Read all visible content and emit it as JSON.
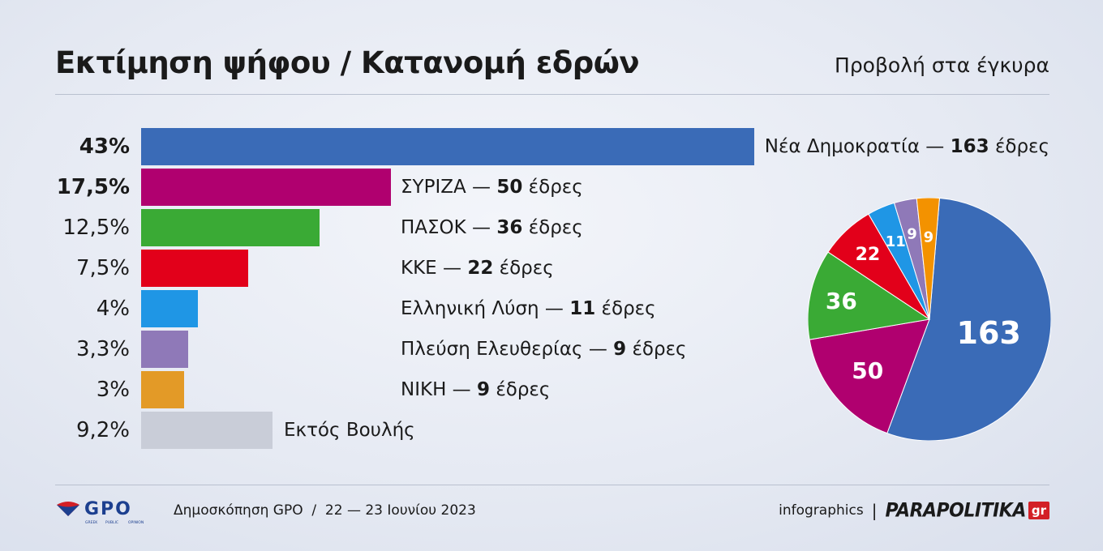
{
  "header": {
    "title": "Εκτίμηση ψήφου / Κατανομή εδρών",
    "subtitle": "Προβολή στα έγκυρα"
  },
  "chart_data": [
    {
      "type": "bar",
      "orientation": "horizontal",
      "title": "Εκτίμηση ψήφου",
      "categories": [
        "Νέα Δημοκρατία",
        "ΣΥΡΙΖΑ",
        "ΠΑΣΟΚ",
        "ΚΚΕ",
        "Ελληνική Λύση",
        "Πλεύση Ελευθερίας",
        "ΝΙΚΗ",
        "Εκτός Βουλής"
      ],
      "values": [
        43,
        17.5,
        12.5,
        7.5,
        4,
        3.3,
        3,
        9.2
      ],
      "value_labels": [
        "43%",
        "17,5%",
        "12,5%",
        "7,5%",
        "4%",
        "3,3%",
        "3%",
        "9,2%"
      ],
      "seat_labels": [
        "163",
        "50",
        "36",
        "22",
        "11",
        "9",
        "9",
        ""
      ],
      "seats_suffix": "έδρες",
      "dash": "—",
      "colors": [
        "#3a6bb7",
        "#b0006f",
        "#3aaa35",
        "#e2001a",
        "#1f96e5",
        "#8f79b8",
        "#e39a27",
        "#c9cdd8"
      ],
      "xlim": [
        0,
        43
      ]
    },
    {
      "type": "pie",
      "title": "Κατανομή εδρών",
      "categories": [
        "Νέα Δημοκρατία",
        "ΣΥΡΙΖΑ",
        "ΠΑΣΟΚ",
        "ΚΚΕ",
        "Ελληνική Λύση",
        "Πλεύση Ελευθερίας",
        "ΝΙΚΗ"
      ],
      "values": [
        163,
        50,
        36,
        22,
        11,
        9,
        9
      ],
      "colors": [
        "#3a6bb7",
        "#b0006f",
        "#3aaa35",
        "#e2001a",
        "#1f96e5",
        "#8f79b8",
        "#f39200"
      ]
    }
  ],
  "footer": {
    "logo_text": "GPO",
    "logo_sub": [
      "GREEK",
      "PUBLIC",
      "OPINION"
    ],
    "poll": "Δημοσκόπηση GPO  /  22 — 23 Ιουνίου 2023",
    "infographics": "infographics",
    "separator": "|",
    "brand": "PARAPOLITIKA",
    "brand_suffix": "gr"
  }
}
